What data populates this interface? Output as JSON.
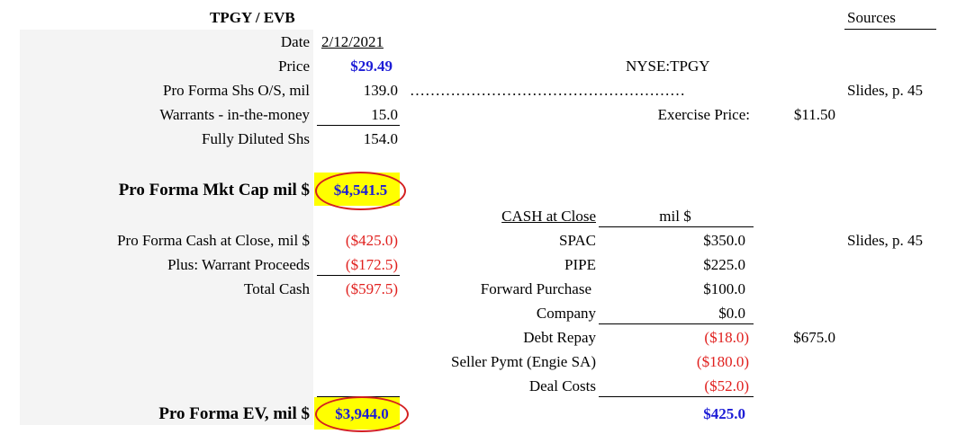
{
  "title": "TPGY / EVB",
  "sources_header": "Sources",
  "left": {
    "date_label": "Date",
    "date_value": "2/12/2021",
    "price_label": "Price",
    "price_value": "$29.49",
    "shs_label": "Pro Forma Shs O/S, mil",
    "shs_value": "139.0",
    "warrants_label": "Warrants - in-the-money",
    "warrants_value": "15.0",
    "diluted_label": "Fully Diluted Shs",
    "diluted_value": "154.0",
    "mktcap_label": "Pro Forma Mkt Cap mil $",
    "mktcap_value": "$4,541.5",
    "cash_label": "Pro Forma Cash at Close, mil $",
    "cash_value": "($425.0)",
    "warrant_proceeds_label": "Plus: Warrant Proceeds",
    "warrant_proceeds_value": "($172.5)",
    "total_cash_label": "Total Cash",
    "total_cash_value": "($597.5)",
    "ev_label": "Pro Forma EV, mil $",
    "ev_value": "$3,944.0"
  },
  "middle": {
    "ticker": "NYSE:TPGY",
    "dots": "………………………………………………",
    "exercise_label": "Exercise Price:",
    "exercise_value": "$11.50",
    "cash_header": "CASH at Close",
    "mil_header": "mil $",
    "items": [
      {
        "label": "SPAC",
        "value": "$350.0"
      },
      {
        "label": "PIPE",
        "value": "$225.0"
      },
      {
        "label": "Forward Purchase",
        "value": "$100.0"
      },
      {
        "label": "Company",
        "value": "$0.0"
      },
      {
        "label": "Debt Repay",
        "value": "($18.0)"
      },
      {
        "label": "Seller Pymt (Engie SA)",
        "value": "($180.0)"
      },
      {
        "label": "Deal Costs",
        "value": "($52.0)"
      }
    ],
    "subtotal": "$675.0",
    "total": "$425.0"
  },
  "sources": {
    "shs_source": "Slides, p. 45",
    "cash_source": "Slides, p. 45"
  },
  "colors": {
    "blue": "#1d1dd6",
    "red": "#e0201e",
    "highlight": "#ffff00",
    "oval": "#d42020"
  }
}
